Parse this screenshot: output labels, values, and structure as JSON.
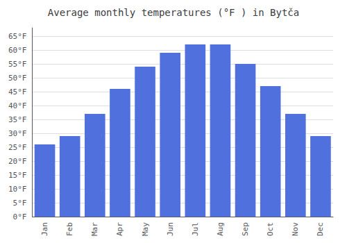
{
  "chart_data": {
    "type": "bar",
    "title": "Average monthly temperatures (°F ) in Bytča",
    "categories": [
      "Jan",
      "Feb",
      "Mar",
      "Apr",
      "May",
      "Jun",
      "Jul",
      "Aug",
      "Sep",
      "Oct",
      "Nov",
      "Dec"
    ],
    "values": [
      26,
      29,
      37,
      46,
      54,
      59,
      62,
      62,
      55,
      47,
      37,
      29
    ],
    "ylim": [
      0,
      68
    ],
    "yticks": [
      {
        "value": 0,
        "label": "0°F"
      },
      {
        "value": 5,
        "label": "5°F"
      },
      {
        "value": 10,
        "label": "10°F"
      },
      {
        "value": 15,
        "label": "15°F"
      },
      {
        "value": 20,
        "label": "20°F"
      },
      {
        "value": 25,
        "label": "25°F"
      },
      {
        "value": 30,
        "label": "30°F"
      },
      {
        "value": 35,
        "label": "35°F"
      },
      {
        "value": 40,
        "label": "40°F"
      },
      {
        "value": 45,
        "label": "45°F"
      },
      {
        "value": 50,
        "label": "50°F"
      },
      {
        "value": 55,
        "label": "55°F"
      },
      {
        "value": 60,
        "label": "60°F"
      },
      {
        "value": 65,
        "label": "65°F"
      }
    ],
    "grid": true
  }
}
